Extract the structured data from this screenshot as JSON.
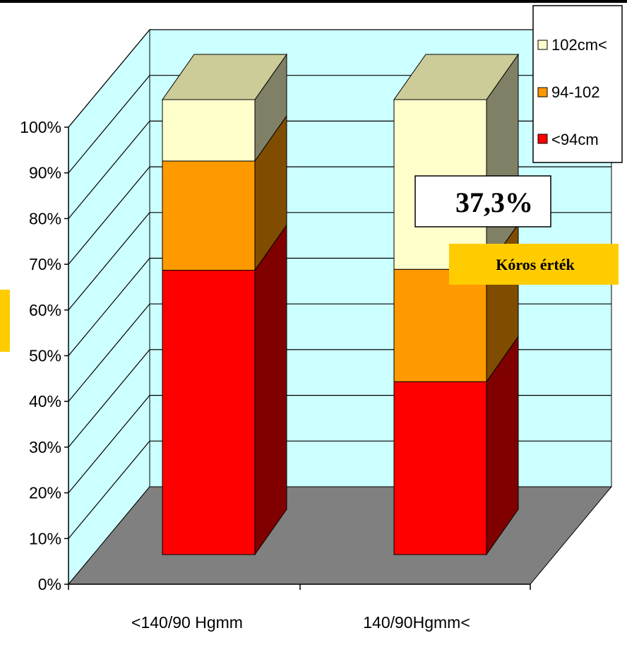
{
  "chart_data": {
    "type": "bar",
    "stacked": true,
    "percent_stacked": true,
    "three_d": true,
    "categories": [
      "<140/90 Hgmm",
      "140/90Hgmm<"
    ],
    "series": [
      {
        "name": "<94cm",
        "values": [
          62.5,
          38.0
        ],
        "color": "#ff0000"
      },
      {
        "name": "94-102",
        "values": [
          24.0,
          24.7
        ],
        "color": "#ff9900"
      },
      {
        "name": "102cm<",
        "values": [
          13.5,
          37.3
        ],
        "color": "#ffffcc"
      }
    ],
    "y_ticks": [
      "0%",
      "10%",
      "20%",
      "30%",
      "40%",
      "50%",
      "60%",
      "70%",
      "80%",
      "90%",
      "100%"
    ],
    "ylim": [
      0,
      100
    ],
    "grid": true,
    "legend_position": "top-right",
    "wall_color": "#ccffff",
    "floor_color": "#808080",
    "annotations": {
      "value_label": "37,3%",
      "flag_label": "Kóros érték",
      "flag_color": "#ffcc00"
    }
  }
}
